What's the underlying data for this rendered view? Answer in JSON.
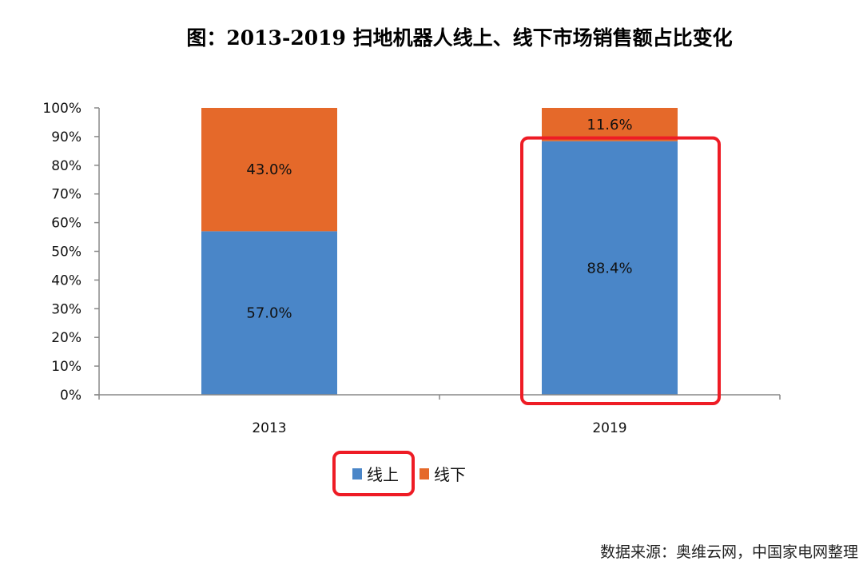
{
  "chart_data": {
    "type": "bar",
    "stacked": true,
    "title": "图：2013-2019 扫地机器人线上、线下市场销售额占比变化",
    "categories": [
      "2013",
      "2019"
    ],
    "series": [
      {
        "name": "线上",
        "values": [
          57.0,
          88.4
        ],
        "labels": [
          "57.0%",
          "88.4%"
        ],
        "color": "#4A86C8"
      },
      {
        "name": "线下",
        "values": [
          43.0,
          11.6
        ],
        "labels": [
          "43.0%",
          "11.6%"
        ],
        "color": "#E5692A"
      }
    ],
    "ylim": [
      0,
      100
    ],
    "yticks": [
      "0%",
      "10%",
      "20%",
      "30%",
      "40%",
      "50%",
      "60%",
      "70%",
      "80%",
      "90%",
      "100%"
    ],
    "grid": false,
    "legend": "bottom",
    "highlight_color": "#EE1C25",
    "highlights": [
      "2019 线上 bar",
      "legend 线上"
    ]
  },
  "source": "数据来源：奥维云网，中国家电网整理"
}
